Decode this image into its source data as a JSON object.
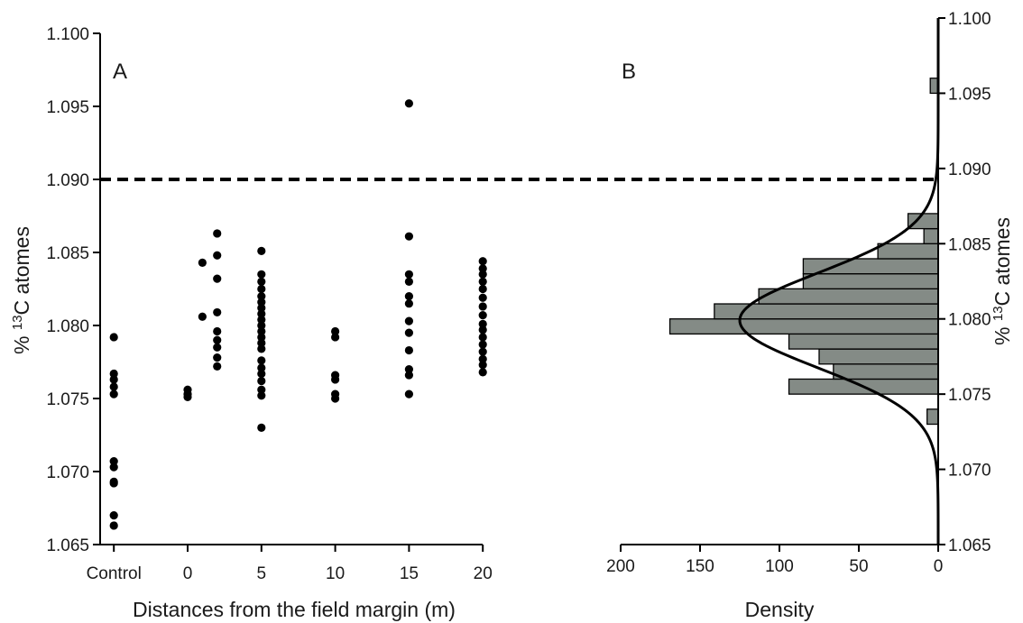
{
  "chart_data": [
    {
      "panel": "A",
      "type": "scatter",
      "xlabel": "Distances from the field margin (m)",
      "ylabel": "% ¹³C atomes",
      "ylabel_parts": {
        "prefix": "% ",
        "sup": "13",
        "suffix": "C atomes"
      },
      "x_ticks": [
        {
          "label": "Control",
          "x": -5
        },
        {
          "label": "0",
          "x": 0
        },
        {
          "label": "5",
          "x": 5
        },
        {
          "label": "10",
          "x": 10
        },
        {
          "label": "15",
          "x": 15
        },
        {
          "label": "20",
          "x": 20
        }
      ],
      "y_ticks": [
        "1.065",
        "1.070",
        "1.075",
        "1.080",
        "1.085",
        "1.090",
        "1.095",
        "1.100"
      ],
      "ylim": [
        1.065,
        1.1
      ],
      "points": [
        {
          "x": -5,
          "y": 1.0792
        },
        {
          "x": -5,
          "y": 1.0767
        },
        {
          "x": -5,
          "y": 1.0763
        },
        {
          "x": -5,
          "y": 1.0758
        },
        {
          "x": -5,
          "y": 1.0753
        },
        {
          "x": -5,
          "y": 1.0707
        },
        {
          "x": -5,
          "y": 1.0703
        },
        {
          "x": -5,
          "y": 1.0693
        },
        {
          "x": -5,
          "y": 1.0692
        },
        {
          "x": -5,
          "y": 1.067
        },
        {
          "x": -5,
          "y": 1.0663
        },
        {
          "x": 0,
          "y": 1.0756
        },
        {
          "x": 0,
          "y": 1.0753
        },
        {
          "x": 0,
          "y": 1.0751
        },
        {
          "x": 1,
          "y": 1.0843
        },
        {
          "x": 1,
          "y": 1.0806
        },
        {
          "x": 2,
          "y": 1.0863
        },
        {
          "x": 2,
          "y": 1.0848
        },
        {
          "x": 2,
          "y": 1.0832
        },
        {
          "x": 2,
          "y": 1.0809
        },
        {
          "x": 2,
          "y": 1.0796
        },
        {
          "x": 2,
          "y": 1.079
        },
        {
          "x": 2,
          "y": 1.0785
        },
        {
          "x": 2,
          "y": 1.0778
        },
        {
          "x": 2,
          "y": 1.0772
        },
        {
          "x": 5,
          "y": 1.0851
        },
        {
          "x": 5,
          "y": 1.0835
        },
        {
          "x": 5,
          "y": 1.083
        },
        {
          "x": 5,
          "y": 1.0825
        },
        {
          "x": 5,
          "y": 1.082
        },
        {
          "x": 5,
          "y": 1.0816
        },
        {
          "x": 5,
          "y": 1.0812
        },
        {
          "x": 5,
          "y": 1.0808
        },
        {
          "x": 5,
          "y": 1.0804
        },
        {
          "x": 5,
          "y": 1.08
        },
        {
          "x": 5,
          "y": 1.0796
        },
        {
          "x": 5,
          "y": 1.0792
        },
        {
          "x": 5,
          "y": 1.0788
        },
        {
          "x": 5,
          "y": 1.0784
        },
        {
          "x": 5,
          "y": 1.0776
        },
        {
          "x": 5,
          "y": 1.0771
        },
        {
          "x": 5,
          "y": 1.0767
        },
        {
          "x": 5,
          "y": 1.0762
        },
        {
          "x": 5,
          "y": 1.0756
        },
        {
          "x": 5,
          "y": 1.0752
        },
        {
          "x": 5,
          "y": 1.073
        },
        {
          "x": 10,
          "y": 1.0796
        },
        {
          "x": 10,
          "y": 1.0792
        },
        {
          "x": 10,
          "y": 1.0766
        },
        {
          "x": 10,
          "y": 1.0763
        },
        {
          "x": 10,
          "y": 1.0753
        },
        {
          "x": 10,
          "y": 1.075
        },
        {
          "x": 15,
          "y": 1.0952
        },
        {
          "x": 15,
          "y": 1.0861
        },
        {
          "x": 15,
          "y": 1.0835
        },
        {
          "x": 15,
          "y": 1.083
        },
        {
          "x": 15,
          "y": 1.082
        },
        {
          "x": 15,
          "y": 1.0815
        },
        {
          "x": 15,
          "y": 1.0803
        },
        {
          "x": 15,
          "y": 1.0795
        },
        {
          "x": 15,
          "y": 1.0783
        },
        {
          "x": 15,
          "y": 1.077
        },
        {
          "x": 15,
          "y": 1.0766
        },
        {
          "x": 15,
          "y": 1.0753
        },
        {
          "x": 20,
          "y": 1.0844
        },
        {
          "x": 20,
          "y": 1.0839
        },
        {
          "x": 20,
          "y": 1.0835
        },
        {
          "x": 20,
          "y": 1.083
        },
        {
          "x": 20,
          "y": 1.0825
        },
        {
          "x": 20,
          "y": 1.0819
        },
        {
          "x": 20,
          "y": 1.0813
        },
        {
          "x": 20,
          "y": 1.0807
        },
        {
          "x": 20,
          "y": 1.0801
        },
        {
          "x": 20,
          "y": 1.0797
        },
        {
          "x": 20,
          "y": 1.0792
        },
        {
          "x": 20,
          "y": 1.0787
        },
        {
          "x": 20,
          "y": 1.0782
        },
        {
          "x": 20,
          "y": 1.0777
        },
        {
          "x": 20,
          "y": 1.0773
        },
        {
          "x": 20,
          "y": 1.0768
        }
      ],
      "threshold_y": 1.09
    },
    {
      "panel": "B",
      "type": "bar",
      "orientation": "horizontal",
      "xlabel": "Density",
      "ylabel": "% ¹³C atomes",
      "ylabel_parts": {
        "prefix": "% ",
        "sup": "13",
        "suffix": "C atomes"
      },
      "x_ticks": [
        "200",
        "150",
        "100",
        "50",
        "0"
      ],
      "xlim": [
        200,
        0
      ],
      "y_ticks": [
        "1.065",
        "1.070",
        "1.075",
        "1.080",
        "1.085",
        "1.090",
        "1.095",
        "1.100"
      ],
      "ylim": [
        1.065,
        1.1
      ],
      "bins": [
        {
          "y0": 1.073,
          "y1": 1.074,
          "density": 7
        },
        {
          "y0": 1.075,
          "y1": 1.076,
          "density": 94
        },
        {
          "y0": 1.076,
          "y1": 1.077,
          "density": 66
        },
        {
          "y0": 1.077,
          "y1": 1.078,
          "density": 75
        },
        {
          "y0": 1.078,
          "y1": 1.079,
          "density": 94
        },
        {
          "y0": 1.079,
          "y1": 1.08,
          "density": 169
        },
        {
          "y0": 1.08,
          "y1": 1.081,
          "density": 141
        },
        {
          "y0": 1.081,
          "y1": 1.082,
          "density": 113
        },
        {
          "y0": 1.082,
          "y1": 1.083,
          "density": 85
        },
        {
          "y0": 1.083,
          "y1": 1.084,
          "density": 85
        },
        {
          "y0": 1.084,
          "y1": 1.085,
          "density": 38
        },
        {
          "y0": 1.085,
          "y1": 1.086,
          "density": 9
        },
        {
          "y0": 1.086,
          "y1": 1.087,
          "density": 19
        },
        {
          "y0": 1.095,
          "y1": 1.096,
          "density": 5
        }
      ],
      "density_curve": {
        "type": "normal",
        "mean": 1.0799,
        "sd": 0.00315,
        "peak_density": 125
      },
      "threshold_y": 1.09
    }
  ],
  "annotations": {
    "panel_a_label": "A",
    "panel_b_label": "B"
  }
}
